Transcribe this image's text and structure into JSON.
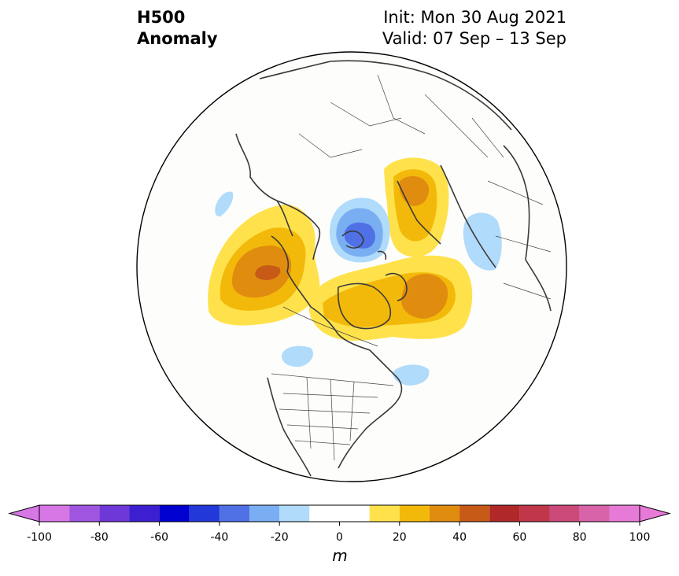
{
  "title": {
    "line1": "H500",
    "line2": "Anomaly",
    "init": "Init: Mon 30 Aug 2021",
    "valid": "Valid: 07 Sep – 13 Sep"
  },
  "colorbar": {
    "levels": [
      -100,
      -90,
      -80,
      -70,
      -60,
      -50,
      -40,
      -30,
      -20,
      -10,
      10,
      20,
      30,
      40,
      50,
      60,
      70,
      80,
      90,
      100
    ],
    "colors": [
      "#d777e6",
      "#a055e0",
      "#6e37d8",
      "#3b1fd0",
      "#0000d0",
      "#2238d8",
      "#5070e6",
      "#79aef2",
      "#b0dbfb",
      "#ffffff",
      "#ffe24b",
      "#f3b90a",
      "#e08c0f",
      "#c85a18",
      "#b02828",
      "#c0374a",
      "#cc4a7a",
      "#d863a8",
      "#e67ad6"
    ],
    "low_extend_color": "#d777e6",
    "high_extend_color": "#e67ad6",
    "ticks": [
      "-100",
      "-80",
      "-60",
      "-40",
      "-20",
      "0",
      "20",
      "40",
      "60",
      "80",
      "100"
    ],
    "unit": "m"
  },
  "map": {
    "projection": "north-polar-stereographic",
    "region": "Northern Hemisphere",
    "anomaly_features": [
      {
        "region": "Alaska / Beaufort",
        "sign": "positive",
        "peak_m": 45
      },
      {
        "region": "Arctic Ocean near pole",
        "sign": "negative",
        "peak_m": -45
      },
      {
        "region": "Greenland / Canadian Archipelago",
        "sign": "positive",
        "peak_m": 35
      },
      {
        "region": "Scandinavia / Barents",
        "sign": "positive",
        "peak_m": 30
      },
      {
        "region": "Western Siberia",
        "sign": "negative",
        "peak_m": -20
      },
      {
        "region": "Pacific Northwest",
        "sign": "negative",
        "peak_m": -15
      },
      {
        "region": "Atlantic Canada",
        "sign": "negative",
        "peak_m": -15
      }
    ]
  }
}
